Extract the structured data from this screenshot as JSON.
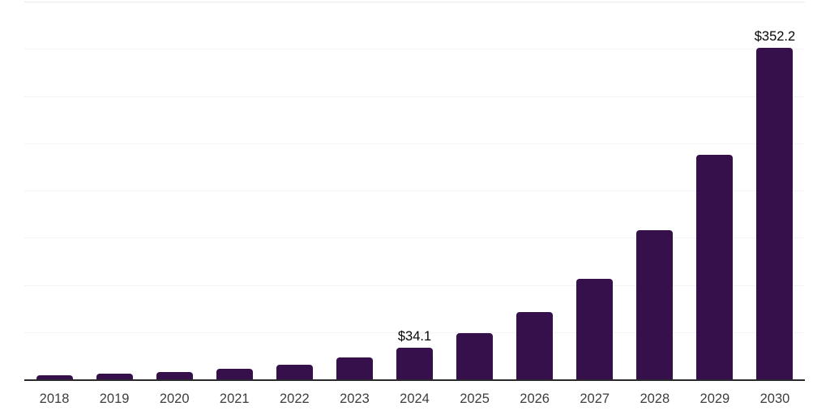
{
  "chart_data": {
    "type": "bar",
    "title": "",
    "xlabel": "",
    "ylabel": "",
    "categories": [
      "2018",
      "2019",
      "2020",
      "2021",
      "2022",
      "2023",
      "2024",
      "2025",
      "2026",
      "2027",
      "2028",
      "2029",
      "2030"
    ],
    "values": [
      5.0,
      6.5,
      8.8,
      12.2,
      16.1,
      24.0,
      34.1,
      49.5,
      72.0,
      107.0,
      159.0,
      238.5,
      352.2
    ],
    "data_labels": [
      "",
      "",
      "",
      "",
      "",
      "",
      "$34.1",
      "",
      "",
      "",
      "",
      "",
      "$352.2"
    ],
    "ylim": [
      0,
      400
    ],
    "grid_step": 50,
    "grid": true,
    "legend": false,
    "y_tick_labels_visible": false,
    "colors": {
      "bar": "#35104B",
      "axis_line": "#2a2a2e",
      "gridline": "#f3f3f6",
      "top_gridline": "#e9e9ee",
      "tick_label": "#3d3d3d",
      "data_label": "#050505",
      "background": "#ffffff"
    }
  }
}
